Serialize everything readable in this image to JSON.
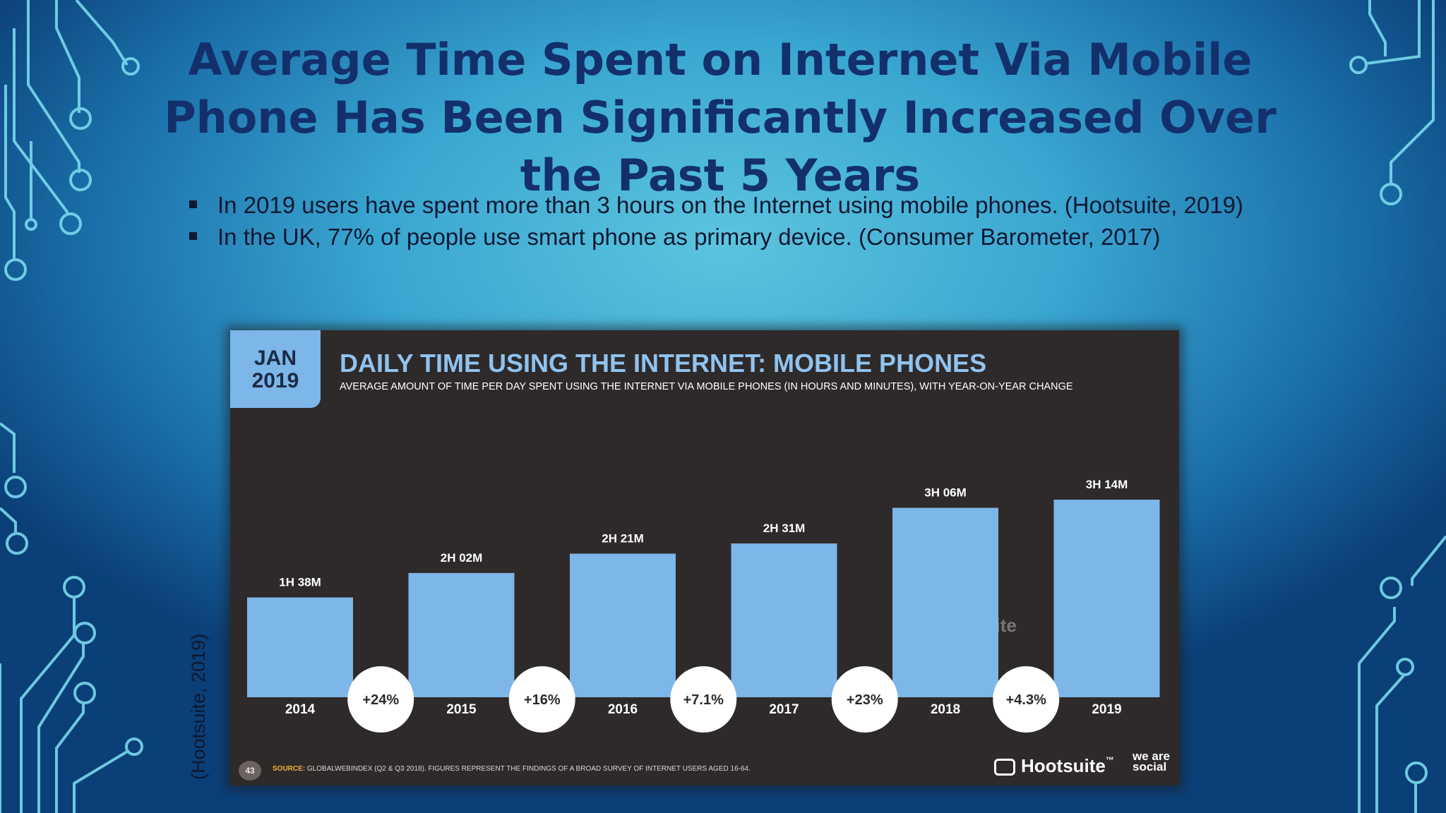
{
  "slide": {
    "title": "Average Time Spent on Internet Via Mobile Phone Has Been Significantly Increased Over the Past 5 Years",
    "bullets": [
      "In 2019 users have spent more than 3 hours on the Internet using mobile phones. (Hootsuite, 2019)",
      "In the UK, 77% of people use smart phone as primary device. (Consumer Barometer, 2017)"
    ],
    "side_citation": "(Hootsuite, 2019)"
  },
  "infographic": {
    "badge_line1": "JAN",
    "badge_line2": "2019",
    "slide_number": "43",
    "source_label": "SOURCE:",
    "source_text": "GLOBALWEBINDEX (Q2 & Q3 2018). FIGURES REPRESENT THE FINDINGS OF A BROAD SURVEY OF INTERNET USERS AGED 16-64.",
    "brand": "Hootsuite",
    "brand_mark": "™",
    "partner": "we are social",
    "watermark": "Hootsuite"
  },
  "chart_data": {
    "type": "bar",
    "title": "DAILY TIME USING THE INTERNET: MOBILE PHONES",
    "subtitle": "AVERAGE AMOUNT OF TIME PER DAY SPENT USING THE INTERNET VIA MOBILE PHONES (IN HOURS AND MINUTES), WITH YEAR-ON-YEAR CHANGE",
    "categories": [
      "2014",
      "2015",
      "2016",
      "2017",
      "2018",
      "2019"
    ],
    "values_minutes": [
      98,
      122,
      141,
      151,
      186,
      194
    ],
    "value_labels": [
      "1H 38M",
      "2H 02M",
      "2H 21M",
      "2H 31M",
      "3H 06M",
      "3H 14M"
    ],
    "yoy_change": [
      "+24%",
      "+16%",
      "+7.1%",
      "+23%",
      "+4.3%"
    ],
    "ylim": [
      0,
      194
    ],
    "xlabel": "",
    "ylabel": "",
    "grid": false,
    "bar_color": "#7db6e8"
  }
}
